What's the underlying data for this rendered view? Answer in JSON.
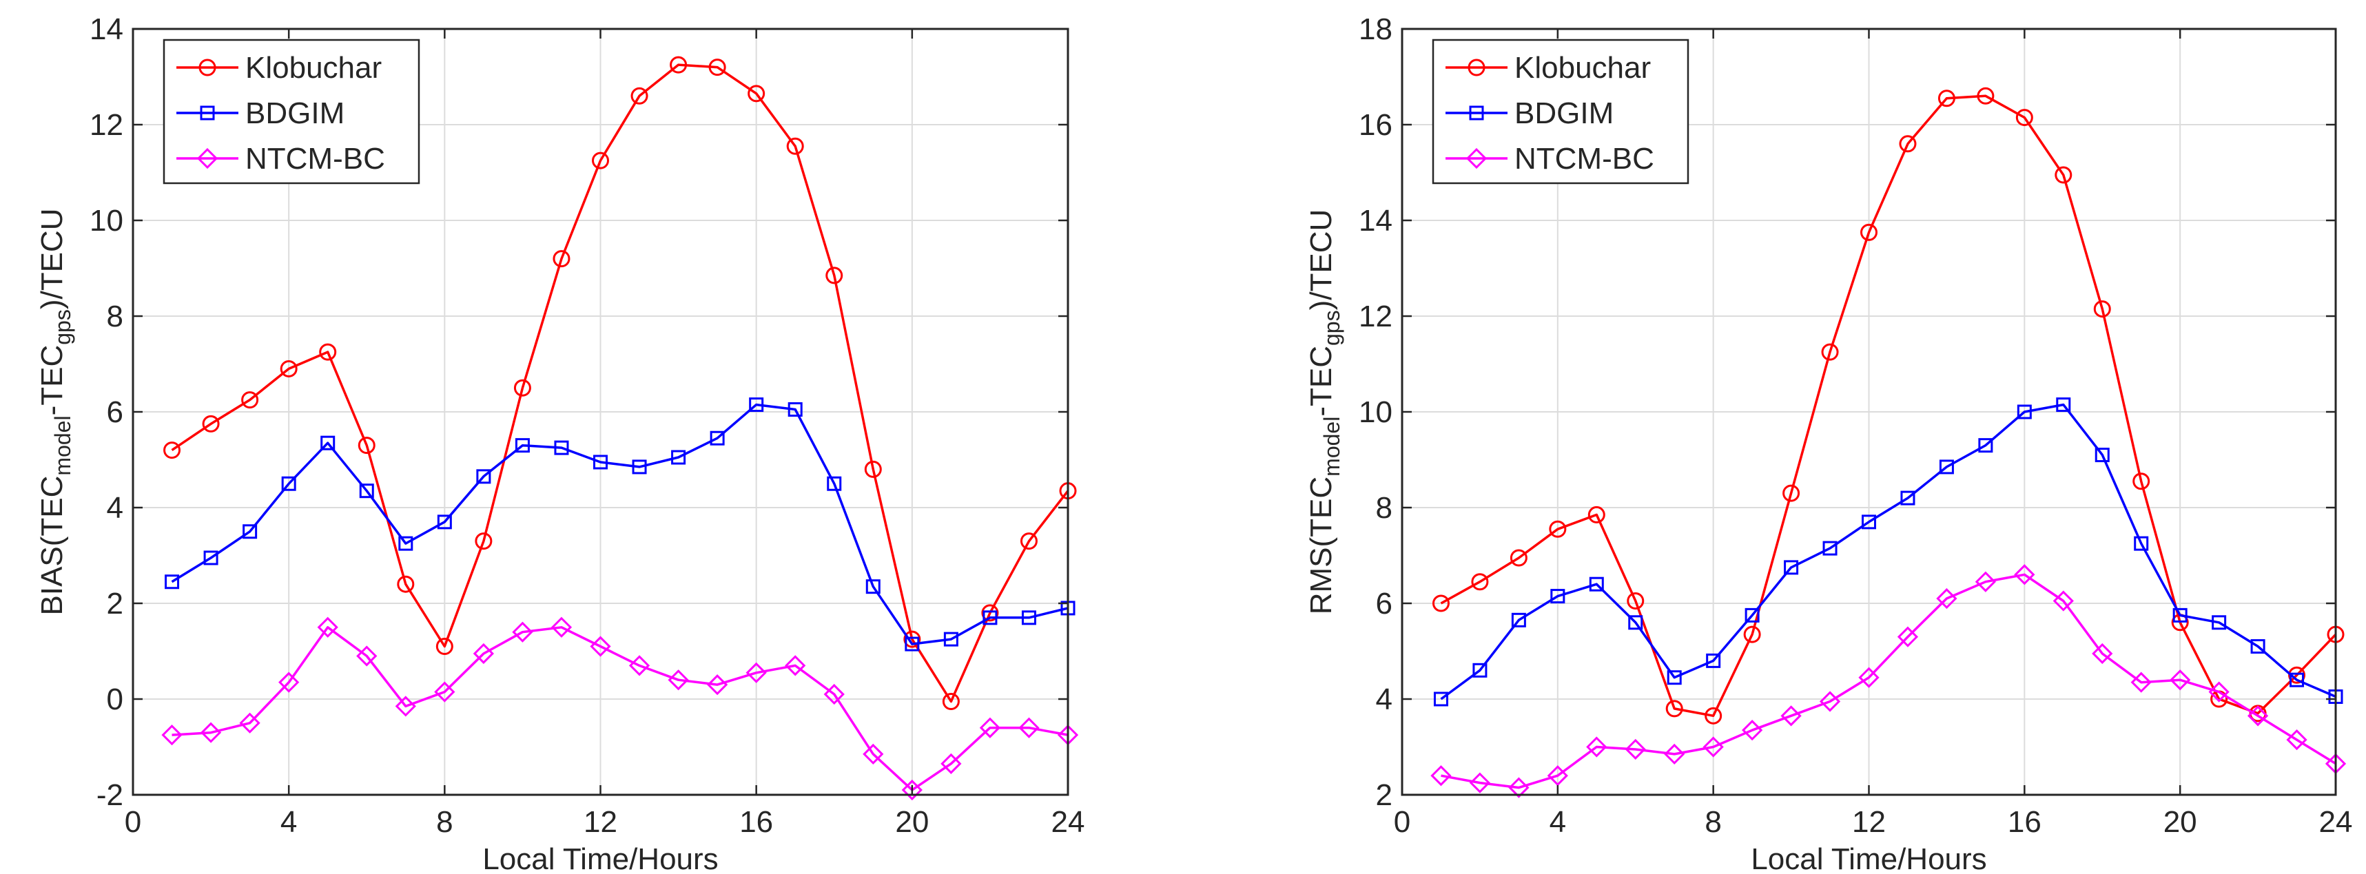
{
  "chart_data": [
    {
      "type": "line",
      "xlabel": "Local Time/Hours",
      "ylabel": {
        "prefix": "BIAS(TEC",
        "sub1": "model",
        "mid": "-TEC",
        "sub2": "gps",
        "suffix": ")/TECU"
      },
      "xlim": [
        0,
        24
      ],
      "ylim": [
        -2,
        14
      ],
      "xticks": [
        0,
        4,
        8,
        12,
        16,
        20,
        24
      ],
      "yticks": [
        -2,
        0,
        2,
        4,
        6,
        8,
        10,
        12,
        14
      ],
      "grid": true,
      "legend_position": "top-left",
      "x": [
        1,
        2,
        3,
        4,
        5,
        6,
        7,
        8,
        9,
        10,
        11,
        12,
        13,
        14,
        15,
        16,
        17,
        18,
        19,
        20,
        21,
        22,
        23,
        24
      ],
      "series": [
        {
          "name": "Klobuchar",
          "color": "#ff0000",
          "marker": "circle",
          "values": [
            5.2,
            5.75,
            6.25,
            6.9,
            7.25,
            5.3,
            2.4,
            1.1,
            3.3,
            6.5,
            9.2,
            11.25,
            12.6,
            13.25,
            13.2,
            12.65,
            11.55,
            8.85,
            4.8,
            1.25,
            -0.05,
            1.8,
            3.3,
            4.35
          ]
        },
        {
          "name": "BDGIM",
          "color": "#0000ff",
          "marker": "square",
          "values": [
            2.45,
            2.95,
            3.5,
            4.5,
            5.35,
            4.35,
            3.25,
            3.7,
            4.65,
            5.3,
            5.25,
            4.95,
            4.85,
            5.05,
            5.45,
            6.15,
            6.05,
            4.5,
            2.35,
            1.15,
            1.25,
            1.7,
            1.7,
            1.9
          ]
        },
        {
          "name": "NTCM-BC",
          "color": "#ff00ff",
          "marker": "diamond",
          "values": [
            -0.75,
            -0.7,
            -0.5,
            0.35,
            1.5,
            0.9,
            -0.15,
            0.15,
            0.95,
            1.4,
            1.5,
            1.1,
            0.7,
            0.4,
            0.3,
            0.55,
            0.7,
            0.1,
            -1.15,
            -1.9,
            -1.35,
            -0.6,
            -0.6,
            -0.75
          ]
        }
      ]
    },
    {
      "type": "line",
      "xlabel": "Local Time/Hours",
      "ylabel": {
        "prefix": "RMS(TEC",
        "sub1": "model",
        "mid": "-TEC",
        "sub2": "gps",
        "suffix": ")/TECU"
      },
      "xlim": [
        0,
        24
      ],
      "ylim": [
        2,
        18
      ],
      "xticks": [
        0,
        4,
        8,
        12,
        16,
        20,
        24
      ],
      "yticks": [
        2,
        4,
        6,
        8,
        10,
        12,
        14,
        16,
        18
      ],
      "grid": true,
      "legend_position": "top-left",
      "x": [
        1,
        2,
        3,
        4,
        5,
        6,
        7,
        8,
        9,
        10,
        11,
        12,
        13,
        14,
        15,
        16,
        17,
        18,
        19,
        20,
        21,
        22,
        23,
        24
      ],
      "series": [
        {
          "name": "Klobuchar",
          "color": "#ff0000",
          "marker": "circle",
          "values": [
            6.0,
            6.45,
            6.95,
            7.55,
            7.85,
            6.05,
            3.8,
            3.65,
            5.35,
            8.3,
            11.25,
            13.75,
            15.6,
            16.55,
            16.6,
            16.15,
            14.95,
            12.15,
            8.55,
            5.6,
            4.0,
            3.7,
            4.5,
            5.35
          ]
        },
        {
          "name": "BDGIM",
          "color": "#0000ff",
          "marker": "square",
          "values": [
            4.0,
            4.6,
            5.65,
            6.15,
            6.4,
            5.6,
            4.45,
            4.8,
            5.75,
            6.75,
            7.15,
            7.7,
            8.2,
            8.85,
            9.3,
            10.0,
            10.15,
            9.1,
            7.25,
            5.75,
            5.6,
            5.1,
            4.4,
            4.05
          ]
        },
        {
          "name": "NTCM-BC",
          "color": "#ff00ff",
          "marker": "diamond",
          "values": [
            2.4,
            2.25,
            2.15,
            2.4,
            3.0,
            2.95,
            2.85,
            3.0,
            3.35,
            3.65,
            3.95,
            4.45,
            5.3,
            6.1,
            6.45,
            6.6,
            6.05,
            4.95,
            4.35,
            4.4,
            4.15,
            3.65,
            3.15,
            2.65
          ]
        }
      ]
    }
  ]
}
